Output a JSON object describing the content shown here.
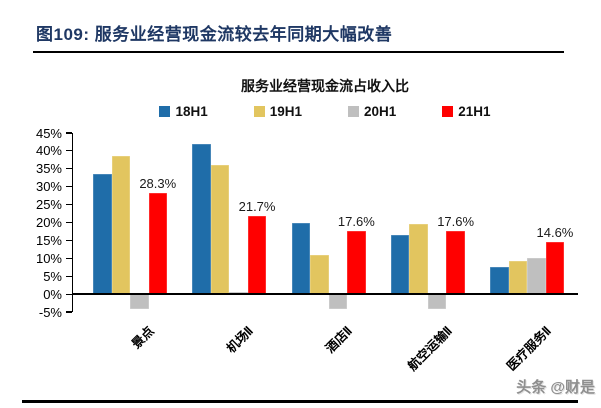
{
  "figure": {
    "title": "图109: 服务业经营现金流较去年同期大幅改善",
    "watermark": "头条 @财是"
  },
  "colors": {
    "header_title": "#1F3864",
    "rule": "#000000",
    "series_18H1": "#1F6DA9",
    "series_19H1": "#E2C55F",
    "series_20H1": "#BFBFBF",
    "series_21H1": "#FF0000",
    "watermark": "#8F8F8F"
  },
  "chart_data": {
    "type": "bar",
    "title": "服务业经营现金流占收入比",
    "categories": [
      "景点",
      "机场Ⅱ",
      "酒店Ⅱ",
      "航空运输Ⅱ",
      "医疗服务Ⅱ"
    ],
    "series": [
      {
        "name": "18H1",
        "color": "#1F6DA9",
        "values": [
          33.5,
          42,
          20,
          16.5,
          7.6
        ]
      },
      {
        "name": "19H1",
        "color": "#E2C55F",
        "values": [
          38.5,
          36,
          11,
          19.5,
          9.3
        ]
      },
      {
        "name": "20H1",
        "color": "#BFBFBF",
        "values": [
          -4.3,
          0.5,
          -4.3,
          -4.3,
          10.1
        ]
      },
      {
        "name": "21H1",
        "color": "#FF0000",
        "values": [
          28.3,
          21.7,
          17.6,
          17.6,
          14.6
        ],
        "labels": [
          "28.3%",
          "21.7%",
          "17.6%",
          "17.6%",
          "14.6%"
        ]
      }
    ],
    "ylim": [
      -5,
      45
    ],
    "ytick_step": 5,
    "ytick_labels": [
      "45%",
      "40%",
      "35%",
      "30%",
      "25%",
      "20%",
      "15%",
      "10%",
      "5%",
      "0%",
      "-5%"
    ],
    "grid": false,
    "legend_position": "top",
    "xlabel": "",
    "ylabel": ""
  }
}
